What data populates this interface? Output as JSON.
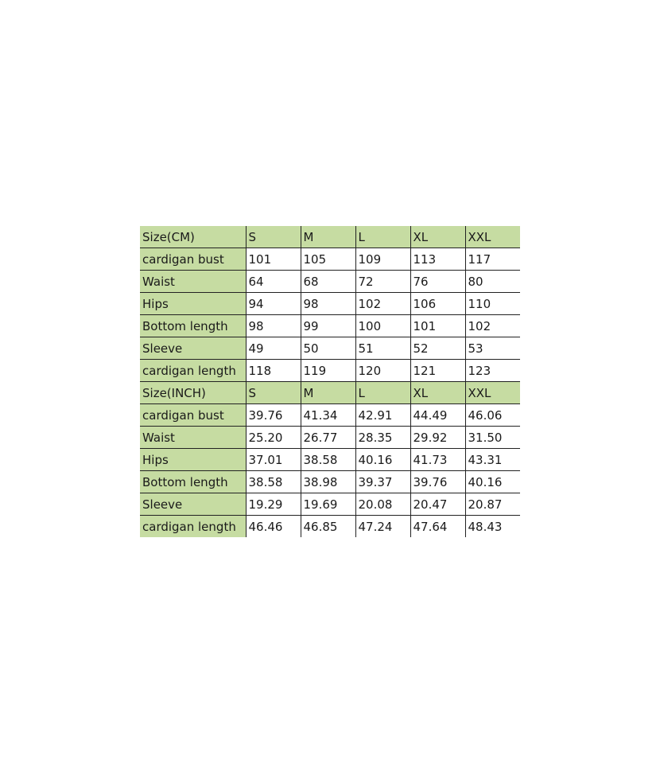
{
  "colors": {
    "header_fill": "#c6dca2",
    "border": "#222222"
  },
  "sections": [
    {
      "header": [
        "Size(CM)",
        "S",
        "M",
        "L",
        "XL",
        "XXL"
      ],
      "rows": [
        [
          "cardigan bust",
          "101",
          "105",
          "109",
          "113",
          "117"
        ],
        [
          "Waist",
          "64",
          "68",
          "72",
          "76",
          "80"
        ],
        [
          "Hips",
          "94",
          "98",
          "102",
          "106",
          "110"
        ],
        [
          "Bottom length",
          "98",
          "99",
          "100",
          "101",
          "102"
        ],
        [
          "Sleeve",
          "49",
          "50",
          "51",
          "52",
          "53"
        ],
        [
          "cardigan length",
          "118",
          "119",
          "120",
          "121",
          "123"
        ]
      ]
    },
    {
      "header": [
        "Size(INCH)",
        "S",
        "M",
        "L",
        "XL",
        "XXL"
      ],
      "rows": [
        [
          "cardigan bust",
          "39.76",
          "41.34",
          "42.91",
          "44.49",
          "46.06"
        ],
        [
          "Waist",
          "25.20",
          "26.77",
          "28.35",
          "29.92",
          "31.50"
        ],
        [
          "Hips",
          "37.01",
          "38.58",
          "40.16",
          "41.73",
          "43.31"
        ],
        [
          "Bottom length",
          "38.58",
          "38.98",
          "39.37",
          "39.76",
          "40.16"
        ],
        [
          "Sleeve",
          "19.29",
          "19.69",
          "20.08",
          "20.47",
          "20.87"
        ],
        [
          "cardigan length",
          "46.46",
          "46.85",
          "47.24",
          "47.64",
          "48.43"
        ]
      ]
    }
  ]
}
